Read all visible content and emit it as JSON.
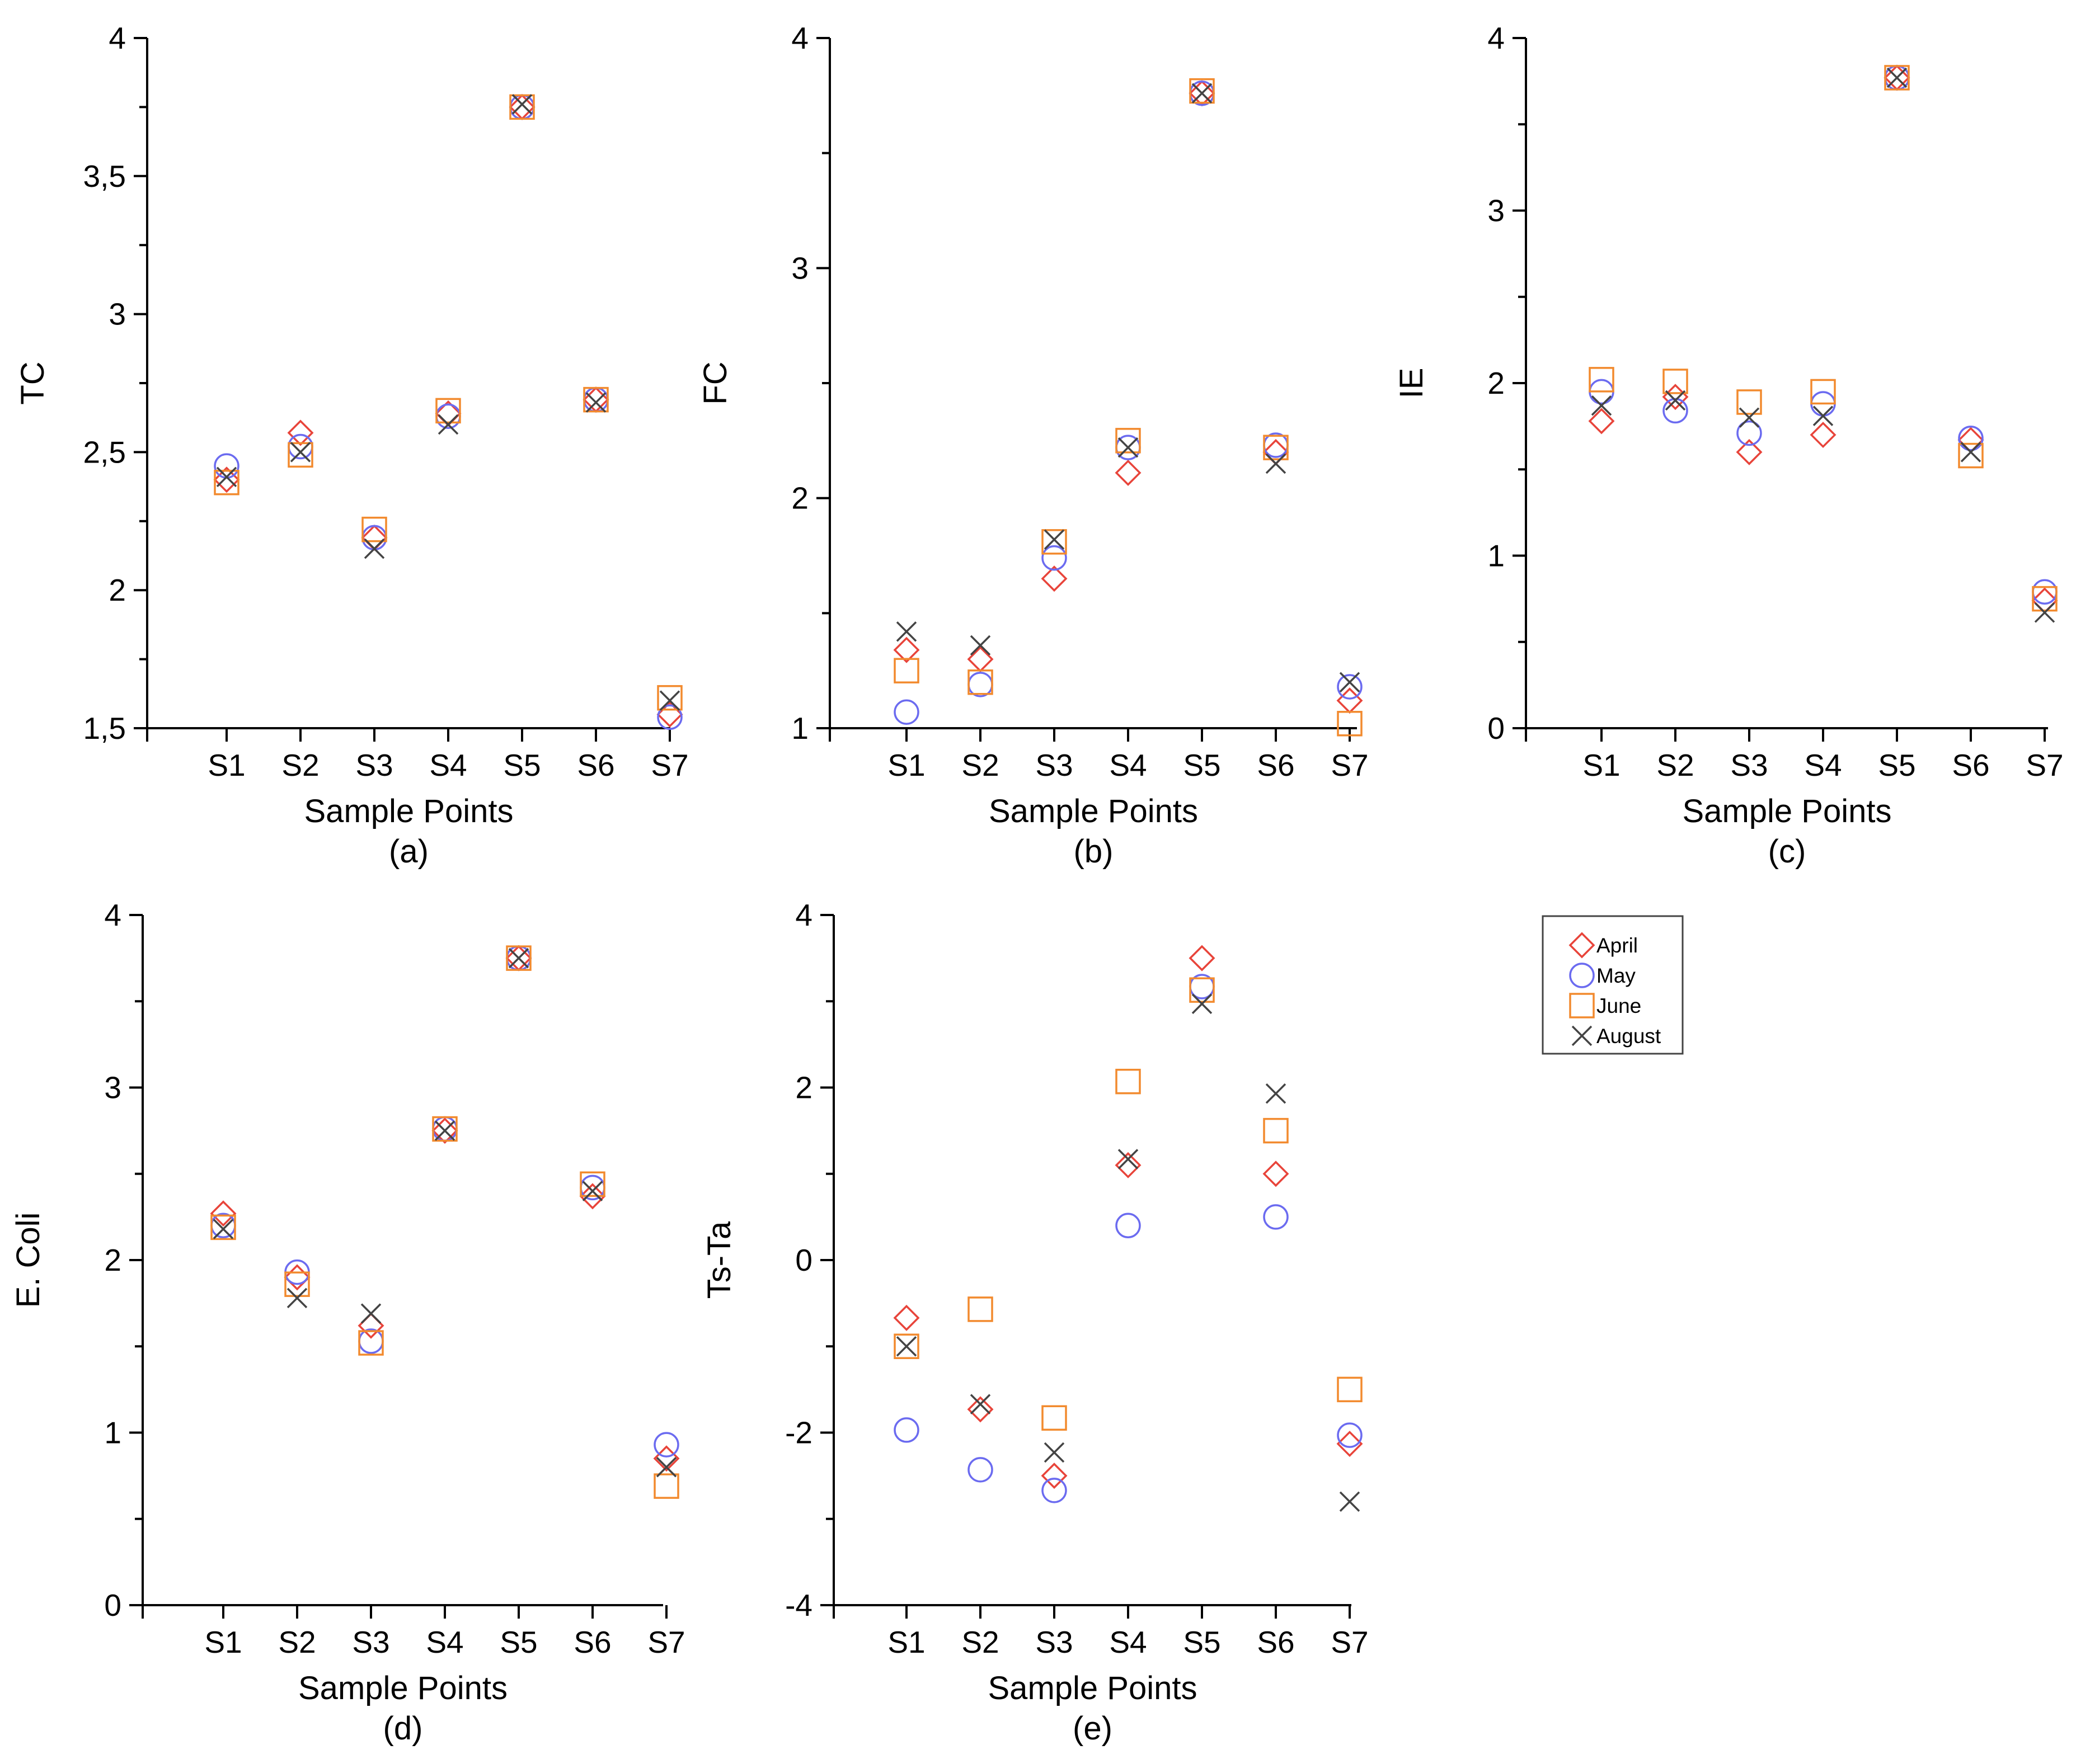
{
  "legend": {
    "entries": [
      {
        "name": "April",
        "marker": "diamond",
        "color": "#e8443a"
      },
      {
        "name": "May",
        "marker": "circle",
        "color": "#6b6bf0"
      },
      {
        "name": "June",
        "marker": "square",
        "color": "#f28a2e"
      },
      {
        "name": "August",
        "marker": "x",
        "color": "#444444"
      }
    ]
  },
  "chart_data": [
    {
      "type": "scatter",
      "panel_label": "(a)",
      "xlabel": "Sample Points",
      "ylabel": "TC",
      "categories": [
        "S1",
        "S2",
        "S3",
        "S4",
        "S5",
        "S6",
        "S7"
      ],
      "ylim": [
        1.5,
        4
      ],
      "yticks": [
        1.5,
        2,
        2.5,
        3,
        3.5,
        4
      ],
      "ytick_labels": [
        "1,5",
        "2",
        "2,5",
        "3",
        "3,5",
        "4"
      ],
      "series": [
        {
          "name": "April",
          "values": [
            2.4,
            2.57,
            2.19,
            2.64,
            3.75,
            2.69,
            1.55
          ]
        },
        {
          "name": "May",
          "values": [
            2.45,
            2.52,
            2.19,
            2.63,
            3.75,
            2.69,
            1.54
          ]
        },
        {
          "name": "June",
          "values": [
            2.39,
            2.49,
            2.22,
            2.65,
            3.75,
            2.69,
            1.61
          ]
        },
        {
          "name": "August",
          "values": [
            2.41,
            2.5,
            2.15,
            2.6,
            3.76,
            2.68,
            1.6
          ]
        }
      ]
    },
    {
      "type": "scatter",
      "panel_label": "(b)",
      "xlabel": "Sample Points",
      "ylabel": "FC",
      "categories": [
        "S1",
        "S2",
        "S3",
        "S4",
        "S5",
        "S6",
        "S7"
      ],
      "ylim": [
        1,
        4
      ],
      "yticks": [
        1,
        2,
        3,
        4
      ],
      "ytick_labels": [
        "1",
        "2",
        "3",
        "4"
      ],
      "series": [
        {
          "name": "April",
          "values": [
            1.34,
            1.3,
            1.65,
            2.11,
            3.76,
            2.2,
            1.12
          ]
        },
        {
          "name": "May",
          "values": [
            1.07,
            1.19,
            1.74,
            2.22,
            3.76,
            2.23,
            1.18
          ]
        },
        {
          "name": "June",
          "values": [
            1.25,
            1.2,
            1.81,
            2.25,
            3.77,
            2.22,
            1.02
          ]
        },
        {
          "name": "August",
          "values": [
            1.42,
            1.36,
            1.82,
            2.22,
            3.76,
            2.15,
            1.2
          ]
        }
      ]
    },
    {
      "type": "scatter",
      "panel_label": "(c)",
      "xlabel": "Sample Points",
      "ylabel": "IE",
      "categories": [
        "S1",
        "S2",
        "S3",
        "S4",
        "S5",
        "S6",
        "S7"
      ],
      "ylim": [
        0,
        4
      ],
      "yticks": [
        0,
        1,
        2,
        3,
        4
      ],
      "ytick_labels": [
        "0",
        "1",
        "2",
        "3",
        "4"
      ],
      "series": [
        {
          "name": "April",
          "values": [
            1.78,
            1.92,
            1.6,
            1.7,
            3.77,
            1.67,
            0.74
          ]
        },
        {
          "name": "May",
          "values": [
            1.95,
            1.84,
            1.71,
            1.88,
            3.77,
            1.68,
            0.79
          ]
        },
        {
          "name": "June",
          "values": [
            2.02,
            2.01,
            1.89,
            1.95,
            3.77,
            1.58,
            0.75
          ]
        },
        {
          "name": "August",
          "values": [
            1.87,
            1.9,
            1.8,
            1.81,
            3.77,
            1.6,
            0.67
          ]
        }
      ]
    },
    {
      "type": "scatter",
      "panel_label": "(d)",
      "xlabel": "Sample Points",
      "ylabel": "E. Coli",
      "categories": [
        "S1",
        "S2",
        "S3",
        "S4",
        "S5",
        "S6",
        "S7"
      ],
      "ylim": [
        0,
        4
      ],
      "yticks": [
        0,
        1,
        2,
        3,
        4
      ],
      "ytick_labels": [
        "0",
        "1",
        "2",
        "3",
        "4"
      ],
      "series": [
        {
          "name": "April",
          "values": [
            2.27,
            1.9,
            1.62,
            2.75,
            3.75,
            2.37,
            0.85
          ]
        },
        {
          "name": "May",
          "values": [
            2.2,
            1.93,
            1.53,
            2.76,
            3.75,
            2.42,
            0.93
          ]
        },
        {
          "name": "June",
          "values": [
            2.19,
            1.86,
            1.52,
            2.76,
            3.75,
            2.44,
            0.69
          ]
        },
        {
          "name": "August",
          "values": [
            2.18,
            1.78,
            1.69,
            2.75,
            3.75,
            2.4,
            0.8
          ]
        }
      ]
    },
    {
      "type": "scatter",
      "panel_label": "(e)",
      "xlabel": "Sample Points",
      "ylabel": "Ts-Ta",
      "categories": [
        "S1",
        "S2",
        "S3",
        "S4",
        "S5",
        "S6",
        "S7"
      ],
      "ylim": [
        -4,
        4
      ],
      "yticks": [
        -4,
        -2,
        0,
        2,
        4
      ],
      "ytick_labels": [
        "-4",
        "-2",
        "0",
        "2",
        "4"
      ],
      "series": [
        {
          "name": "April",
          "values": [
            -0.67,
            -1.73,
            -2.5,
            1.1,
            3.5,
            1.0,
            -2.13
          ]
        },
        {
          "name": "May",
          "values": [
            -1.97,
            -2.43,
            -2.67,
            0.4,
            3.17,
            0.5,
            -2.03
          ]
        },
        {
          "name": "June",
          "values": [
            -1.0,
            -0.57,
            -1.83,
            2.07,
            3.13,
            1.5,
            -1.5
          ]
        },
        {
          "name": "August",
          "values": [
            -1.0,
            -1.67,
            -2.23,
            1.17,
            2.97,
            1.93,
            -2.8
          ]
        }
      ]
    }
  ]
}
